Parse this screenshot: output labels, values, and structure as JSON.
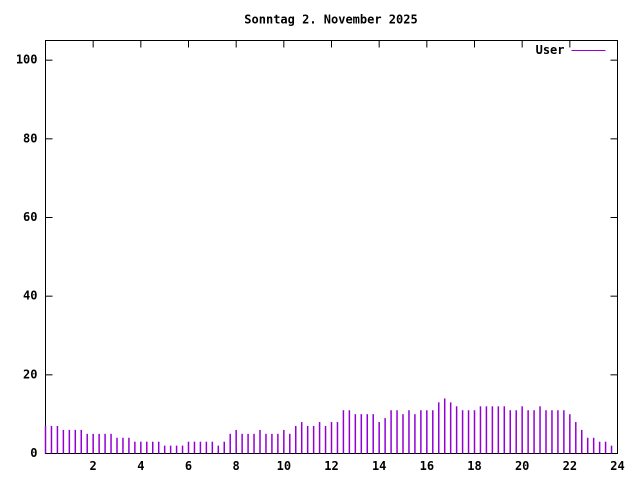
{
  "chart_data": {
    "type": "impulse",
    "title": "Sonntag 2. November 2025",
    "x": [
      0,
      0.25,
      0.5,
      0.75,
      1,
      1.25,
      1.5,
      1.75,
      2,
      2.25,
      2.5,
      2.75,
      3,
      3.25,
      3.5,
      3.75,
      4,
      4.25,
      4.5,
      4.75,
      5,
      5.25,
      5.5,
      5.75,
      6,
      6.25,
      6.5,
      6.75,
      7,
      7.25,
      7.5,
      7.75,
      8,
      8.25,
      8.5,
      8.75,
      9,
      9.25,
      9.5,
      9.75,
      10,
      10.25,
      10.5,
      10.75,
      11,
      11.25,
      11.5,
      11.75,
      12,
      12.25,
      12.5,
      12.75,
      13,
      13.25,
      13.5,
      13.75,
      14,
      14.25,
      14.5,
      14.75,
      15,
      15.25,
      15.5,
      15.75,
      16,
      16.25,
      16.5,
      16.75,
      17,
      17.25,
      17.5,
      17.75,
      18,
      18.25,
      18.5,
      18.75,
      19,
      19.25,
      19.5,
      19.75,
      20,
      20.25,
      20.5,
      20.75,
      21,
      21.25,
      21.5,
      21.75,
      22,
      22.25,
      22.5,
      22.75,
      23,
      23.25,
      23.5,
      23.75
    ],
    "series": [
      {
        "name": "User",
        "color": "#9400d3",
        "values": [
          7,
          7,
          7,
          6,
          6,
          6,
          6,
          5,
          5,
          5,
          5,
          5,
          4,
          4,
          4,
          3,
          3,
          3,
          3,
          3,
          2,
          2,
          2,
          2,
          3,
          3,
          3,
          3,
          3,
          2,
          3,
          5,
          6,
          5,
          5,
          5,
          6,
          5,
          5,
          5,
          6,
          5,
          7,
          8,
          7,
          7,
          8,
          7,
          8,
          8,
          11,
          11,
          10,
          10,
          10,
          10,
          8,
          9,
          11,
          11,
          10,
          11,
          10,
          11,
          11,
          11,
          13,
          14,
          13,
          12,
          11,
          11,
          11,
          12,
          12,
          12,
          12,
          12,
          11,
          11,
          12,
          11,
          11,
          12,
          11,
          11,
          11,
          11,
          10,
          8,
          6,
          4,
          4,
          3,
          3,
          2
        ]
      }
    ],
    "xlim": [
      0,
      24
    ],
    "xticks": [
      2,
      4,
      6,
      8,
      10,
      12,
      14,
      16,
      18,
      20,
      22,
      24
    ],
    "ylim": [
      0,
      105
    ],
    "yticks": [
      0,
      20,
      40,
      60,
      80,
      100
    ],
    "legend": "upper right"
  }
}
